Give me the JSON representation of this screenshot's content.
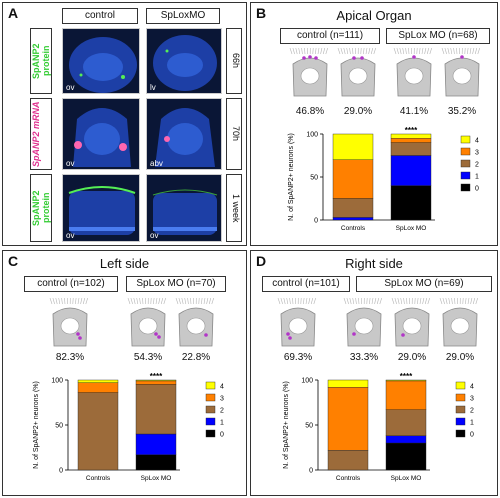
{
  "panelA": {
    "letter": "A",
    "col_control": "control",
    "col_splox": "SpLoxMO",
    "rows": [
      {
        "label_gene": "SpANP2",
        "label_kind": "protein",
        "time": "66h",
        "tags": [
          "ov",
          "lv"
        ],
        "label_color": "#33cc33"
      },
      {
        "label_gene": "SpANP2",
        "label_kind": "mRNA",
        "time": "70h",
        "tags": [
          "ov",
          "abv"
        ],
        "label_color": "#e0338f"
      },
      {
        "label_gene": "SpANP2",
        "label_kind": "protein",
        "time": "1 week",
        "tags": [
          "ov",
          "ov"
        ],
        "label_color": "#33cc33"
      }
    ]
  },
  "panelB": {
    "letter": "B",
    "title": "Apical Organ",
    "group_control": "control (n=111)",
    "group_splox": "SpLox MO (n=68)",
    "percents": [
      "46.8%",
      "29.0%",
      "41.1%",
      "35.2%"
    ],
    "significance": "****"
  },
  "panelC": {
    "letter": "C",
    "title": "Left side",
    "group_control": "control (n=102)",
    "group_splox": "SpLox MO (n=70)",
    "percents": [
      "82.3%",
      "54.3%",
      "22.8%"
    ],
    "significance": "****"
  },
  "panelD": {
    "letter": "D",
    "title": "Right side",
    "group_control": "control (n=101)",
    "group_splox": "SpLox MO (n=69)",
    "percents": [
      "69.3%",
      "33.3%",
      "29.0%",
      "29.0%"
    ],
    "significance": "****"
  },
  "chart_data": [
    {
      "type": "bar",
      "stacked": true,
      "panel": "B",
      "categories": [
        "Controls",
        "SpLox MO"
      ],
      "ylabel": "N. of SpANP2+ neurons (%)",
      "ylim": [
        0,
        100
      ],
      "yticks": [
        0,
        50,
        100
      ],
      "legend": [
        "4",
        "3",
        "2",
        "1",
        "0"
      ],
      "legend_colors": [
        "#ffff00",
        "#ff8000",
        "#9c6b3a",
        "#0000ff",
        "#000000"
      ],
      "series": [
        {
          "name": "0",
          "values": [
            0,
            40
          ]
        },
        {
          "name": "1",
          "values": [
            3,
            35
          ]
        },
        {
          "name": "2",
          "values": [
            22,
            15
          ]
        },
        {
          "name": "3",
          "values": [
            45,
            5
          ]
        },
        {
          "name": "4",
          "values": [
            30,
            5
          ]
        }
      ],
      "significance": "****"
    },
    {
      "type": "bar",
      "stacked": true,
      "panel": "C",
      "categories": [
        "Controls",
        "SpLox MO"
      ],
      "ylabel": "N. of SpANP2+ neurons (%)",
      "ylim": [
        0,
        100
      ],
      "yticks": [
        0,
        50,
        100
      ],
      "legend": [
        "4",
        "3",
        "2",
        "1",
        "0"
      ],
      "legend_colors": [
        "#ffff00",
        "#ff8000",
        "#9c6b3a",
        "#0000ff",
        "#000000"
      ],
      "series": [
        {
          "name": "0",
          "values": [
            0,
            17
          ]
        },
        {
          "name": "1",
          "values": [
            0,
            23
          ]
        },
        {
          "name": "2",
          "values": [
            86,
            55
          ]
        },
        {
          "name": "3",
          "values": [
            11,
            4
          ]
        },
        {
          "name": "4",
          "values": [
            3,
            1
          ]
        }
      ],
      "significance": "****"
    },
    {
      "type": "bar",
      "stacked": true,
      "panel": "D",
      "categories": [
        "Controls",
        "SpLox MO"
      ],
      "ylabel": "N. of SpANP2+ neurons (%)",
      "ylim": [
        0,
        100
      ],
      "yticks": [
        0,
        50,
        100
      ],
      "legend": [
        "4",
        "3",
        "2",
        "1",
        "0"
      ],
      "legend_colors": [
        "#ffff00",
        "#ff8000",
        "#9c6b3a",
        "#0000ff",
        "#000000"
      ],
      "series": [
        {
          "name": "0",
          "values": [
            0,
            30
          ]
        },
        {
          "name": "1",
          "values": [
            0,
            8
          ]
        },
        {
          "name": "2",
          "values": [
            22,
            29
          ]
        },
        {
          "name": "3",
          "values": [
            70,
            32
          ]
        },
        {
          "name": "4",
          "values": [
            8,
            1
          ]
        }
      ],
      "significance": "****"
    }
  ]
}
